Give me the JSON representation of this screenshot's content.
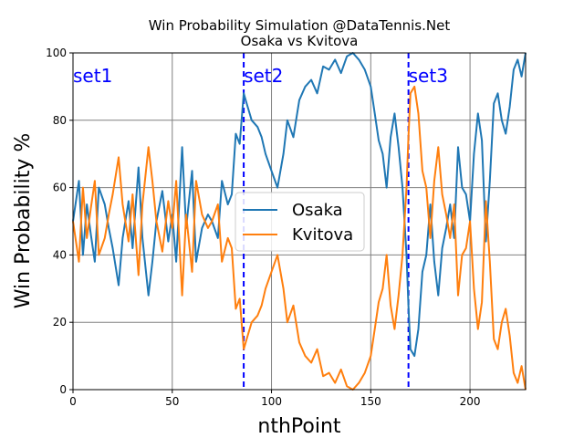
{
  "chart_data": {
    "type": "line",
    "title": "Win Probability Simulation @DataTennis.Net",
    "subtitle": "Osaka vs Kvitova",
    "xlabel": "nthPoint",
    "ylabel": "Win Probability %",
    "xlim": [
      0,
      228
    ],
    "ylim": [
      0,
      100
    ],
    "xticks": [
      0,
      50,
      100,
      150,
      200
    ],
    "yticks": [
      0,
      20,
      40,
      60,
      80,
      100
    ],
    "grid": true,
    "legend_position": "center-right",
    "set_markers": [
      {
        "label": "set1",
        "x": 0
      },
      {
        "label": "set2",
        "x": 86
      },
      {
        "label": "set3",
        "x": 169
      }
    ],
    "set_line_color": "#0000ff",
    "series": [
      {
        "name": "Osaka",
        "color": "#1f77b4",
        "x": [
          0,
          3,
          5,
          7,
          9,
          11,
          13,
          16,
          18,
          20,
          23,
          25,
          28,
          30,
          33,
          35,
          38,
          40,
          42,
          45,
          48,
          50,
          52,
          55,
          57,
          60,
          62,
          65,
          68,
          70,
          73,
          75,
          78,
          80,
          82,
          84,
          86,
          88,
          90,
          93,
          95,
          97,
          100,
          103,
          106,
          108,
          111,
          114,
          117,
          120,
          123,
          126,
          129,
          132,
          135,
          138,
          141,
          144,
          147,
          150,
          152,
          154,
          156,
          158,
          160,
          162,
          164,
          166,
          168,
          169,
          170,
          172,
          174,
          176,
          178,
          180,
          182,
          184,
          186,
          188,
          190,
          192,
          194,
          196,
          198,
          200,
          202,
          204,
          206,
          208,
          210,
          212,
          214,
          216,
          218,
          220,
          222,
          224,
          226,
          228
        ],
        "values": [
          50,
          62,
          40,
          55,
          46,
          38,
          60,
          55,
          48,
          42,
          31,
          45,
          56,
          42,
          66,
          45,
          28,
          38,
          50,
          59,
          44,
          52,
          38,
          72,
          48,
          65,
          38,
          48,
          52,
          50,
          45,
          62,
          55,
          58,
          76,
          73,
          88,
          84,
          80,
          78,
          75,
          70,
          65,
          60,
          70,
          80,
          75,
          86,
          90,
          92,
          88,
          96,
          95,
          98,
          94,
          99,
          100,
          98,
          95,
          90,
          82,
          74,
          70,
          60,
          75,
          82,
          72,
          60,
          40,
          25,
          12,
          10,
          18,
          35,
          40,
          55,
          38,
          28,
          42,
          48,
          55,
          45,
          72,
          60,
          58,
          50,
          70,
          82,
          74,
          44,
          62,
          85,
          88,
          80,
          76,
          84,
          95,
          98,
          93,
          100
        ]
      },
      {
        "name": "Kvitova",
        "color": "#ff7f0e",
        "x": [
          0,
          3,
          5,
          7,
          9,
          11,
          13,
          16,
          18,
          20,
          23,
          25,
          28,
          30,
          33,
          35,
          38,
          40,
          42,
          45,
          48,
          50,
          52,
          55,
          57,
          60,
          62,
          65,
          68,
          70,
          73,
          75,
          78,
          80,
          82,
          84,
          86,
          88,
          90,
          93,
          95,
          97,
          100,
          103,
          106,
          108,
          111,
          114,
          117,
          120,
          123,
          126,
          129,
          132,
          135,
          138,
          141,
          144,
          147,
          150,
          152,
          154,
          156,
          158,
          160,
          162,
          164,
          166,
          168,
          169,
          170,
          172,
          174,
          176,
          178,
          180,
          182,
          184,
          186,
          188,
          190,
          192,
          194,
          196,
          198,
          200,
          202,
          204,
          206,
          208,
          210,
          212,
          214,
          216,
          218,
          220,
          222,
          224,
          226,
          228
        ],
        "values": [
          50,
          38,
          60,
          45,
          54,
          62,
          40,
          45,
          52,
          58,
          69,
          55,
          44,
          58,
          34,
          55,
          72,
          62,
          50,
          41,
          56,
          48,
          62,
          28,
          52,
          35,
          62,
          52,
          48,
          50,
          55,
          38,
          45,
          42,
          24,
          27,
          12,
          16,
          20,
          22,
          25,
          30,
          35,
          40,
          30,
          20,
          25,
          14,
          10,
          8,
          12,
          4,
          5,
          2,
          6,
          1,
          0,
          2,
          5,
          10,
          18,
          26,
          30,
          40,
          25,
          18,
          28,
          40,
          60,
          75,
          88,
          90,
          82,
          65,
          60,
          45,
          62,
          72,
          58,
          52,
          45,
          55,
          28,
          40,
          42,
          50,
          30,
          18,
          26,
          56,
          38,
          15,
          12,
          20,
          24,
          16,
          5,
          2,
          7,
          0
        ]
      }
    ]
  }
}
